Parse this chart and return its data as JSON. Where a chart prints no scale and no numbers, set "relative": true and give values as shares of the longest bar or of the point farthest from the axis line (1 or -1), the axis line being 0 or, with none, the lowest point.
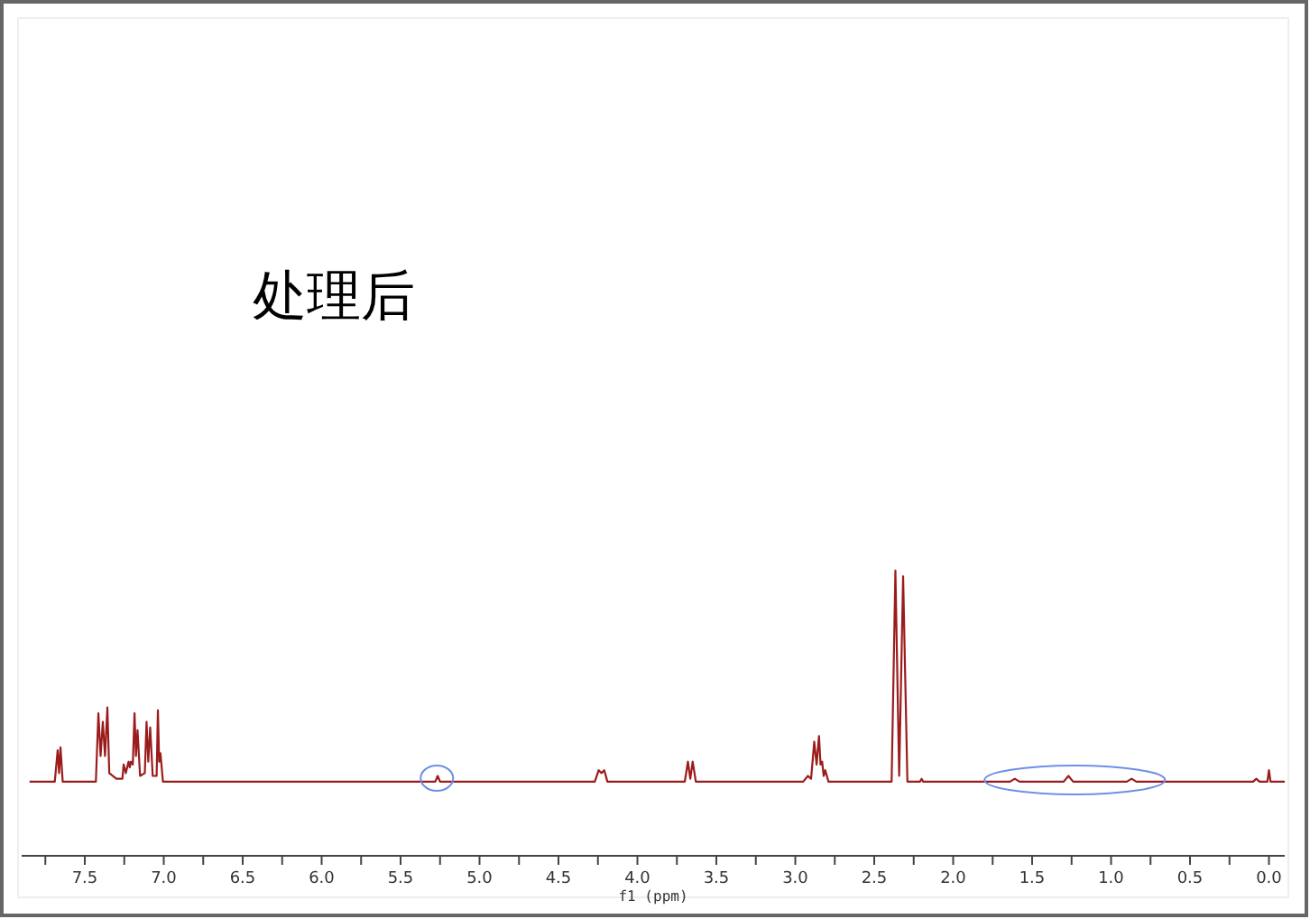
{
  "chart_data": {
    "type": "line",
    "title": "处理后",
    "xlabel": "f1 (ppm)",
    "relative": true,
    "color": "#9b1c1c",
    "marker": "none",
    "line_style": "solid",
    "xlim": [
      7.9,
      -0.1
    ],
    "xticks": [
      {
        "value": 7.75,
        "label": null
      },
      {
        "value": 7.5,
        "label": "7.5"
      },
      {
        "value": 7.25,
        "label": null
      },
      {
        "value": 7.0,
        "label": "7.0"
      },
      {
        "value": 6.75,
        "label": null
      },
      {
        "value": 6.5,
        "label": "6.5"
      },
      {
        "value": 6.25,
        "label": null
      },
      {
        "value": 6.0,
        "label": "6.0"
      },
      {
        "value": 5.75,
        "label": null
      },
      {
        "value": 5.5,
        "label": "5.5"
      },
      {
        "value": 5.25,
        "label": null
      },
      {
        "value": 5.0,
        "label": "5.0"
      },
      {
        "value": 4.75,
        "label": null
      },
      {
        "value": 4.5,
        "label": "4.5"
      },
      {
        "value": 4.25,
        "label": null
      },
      {
        "value": 4.0,
        "label": "4.0"
      },
      {
        "value": 3.75,
        "label": null
      },
      {
        "value": 3.5,
        "label": "3.5"
      },
      {
        "value": 3.25,
        "label": null
      },
      {
        "value": 3.0,
        "label": "3.0"
      },
      {
        "value": 2.75,
        "label": null
      },
      {
        "value": 2.5,
        "label": "2.5"
      },
      {
        "value": 2.25,
        "label": null
      },
      {
        "value": 2.0,
        "label": "2.0"
      },
      {
        "value": 1.75,
        "label": null
      },
      {
        "value": 1.5,
        "label": "1.5"
      },
      {
        "value": 1.25,
        "label": null
      },
      {
        "value": 1.0,
        "label": "1.0"
      },
      {
        "value": 0.75,
        "label": null
      },
      {
        "value": 0.5,
        "label": "0.5"
      },
      {
        "value": 0.25,
        "label": null
      },
      {
        "value": 0.0,
        "label": "0.0"
      }
    ],
    "x": [
      7.85,
      7.69,
      7.672,
      7.663,
      7.654,
      7.64,
      7.43,
      7.414,
      7.4,
      7.386,
      7.372,
      7.357,
      7.345,
      7.3,
      7.262,
      7.254,
      7.24,
      7.223,
      7.215,
      7.208,
      7.196,
      7.185,
      7.176,
      7.166,
      7.15,
      7.12,
      7.109,
      7.098,
      7.086,
      7.07,
      7.045,
      7.037,
      7.029,
      7.021,
      7.005,
      6.0,
      5.28,
      5.265,
      5.25,
      4.27,
      4.245,
      4.228,
      4.21,
      4.19,
      3.7,
      3.68,
      3.665,
      3.65,
      3.63,
      2.95,
      2.92,
      2.9,
      2.88,
      2.865,
      2.85,
      2.84,
      2.83,
      2.82,
      2.81,
      2.79,
      2.39,
      2.366,
      2.342,
      2.317,
      2.29,
      2.21,
      2.2,
      2.19,
      1.64,
      1.61,
      1.58,
      1.3,
      1.27,
      1.24,
      0.9,
      0.87,
      0.84,
      0.1,
      0.08,
      0.06,
      0.01,
      0.0,
      -0.01,
      -0.1
    ],
    "values": [
      0.26,
      0.26,
      0.37,
      0.29,
      0.38,
      0.26,
      0.26,
      0.5,
      0.35,
      0.47,
      0.35,
      0.52,
      0.29,
      0.27,
      0.27,
      0.32,
      0.29,
      0.33,
      0.31,
      0.33,
      0.32,
      0.5,
      0.35,
      0.44,
      0.28,
      0.29,
      0.47,
      0.33,
      0.45,
      0.28,
      0.28,
      0.51,
      0.33,
      0.36,
      0.26,
      0.26,
      0.26,
      0.28,
      0.26,
      0.26,
      0.3,
      0.29,
      0.3,
      0.26,
      0.26,
      0.33,
      0.27,
      0.33,
      0.26,
      0.26,
      0.28,
      0.27,
      0.4,
      0.32,
      0.42,
      0.32,
      0.33,
      0.28,
      0.3,
      0.26,
      0.26,
      1.0,
      0.28,
      0.98,
      0.26,
      0.26,
      0.27,
      0.26,
      0.26,
      0.27,
      0.26,
      0.26,
      0.28,
      0.26,
      0.26,
      0.27,
      0.26,
      0.26,
      0.27,
      0.26,
      0.26,
      0.3,
      0.26,
      0.26
    ]
  }
}
